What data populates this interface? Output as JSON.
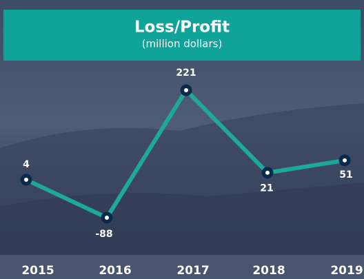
{
  "chart_data": {
    "type": "line",
    "title": "Loss/Profit",
    "subtitle": "(million dollars)",
    "categories": [
      "2015",
      "2016",
      "2017",
      "2018",
      "2019"
    ],
    "values": [
      4,
      -88,
      221,
      21,
      51
    ],
    "color": "#1ea89c",
    "marker_color": "#0a2a4c"
  }
}
